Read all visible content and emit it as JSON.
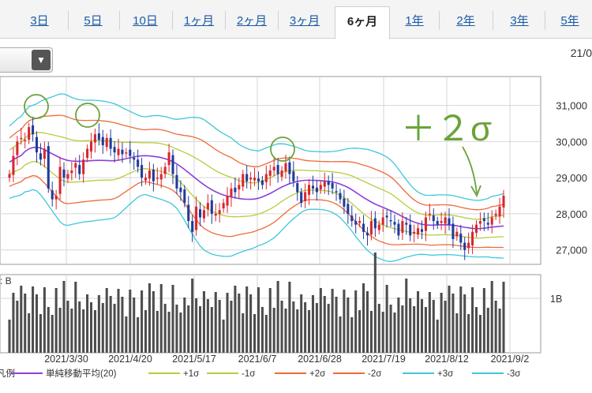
{
  "tabs": [
    "3日",
    "5日",
    "10日",
    "1ヶ月",
    "2ヶ月",
    "3ヶ月",
    "6ヶ月",
    "1年",
    "2年",
    "3年",
    "5年"
  ],
  "active_tab": "6ヶ月",
  "date_label": "21/0",
  "annotation": "＋２σ",
  "volume_label": ": B",
  "colors": {
    "up": "#d9262e",
    "down": "#1f3b9b",
    "sma": "#8e3fd6",
    "s1": "#b9cc3c",
    "s2": "#ee6b3a",
    "s3": "#3fc7d9",
    "vol": "#4d4d4d",
    "note": "#6aa33a"
  },
  "chart_data": {
    "type": "candlestick",
    "title": "",
    "y_ticks": [
      "31,000",
      "30,000",
      "29,000",
      "28,000",
      "27,000"
    ],
    "ylim": [
      26600,
      31800
    ],
    "x_ticks": [
      "2021/3/30",
      "2021/4/20",
      "2021/5/17",
      "2021/6/7",
      "2021/6/28",
      "2021/7/19",
      "2021/8/12",
      "2021/9/2"
    ],
    "volume_tick": "1B",
    "legend": [
      {
        "label": "単純移動平均(20)",
        "color": "#8e3fd6"
      },
      {
        "label": "+1σ",
        "color": "#b9cc3c"
      },
      {
        "label": "-1σ",
        "color": "#b9cc3c"
      },
      {
        "label": "+2σ",
        "color": "#ee6b3a"
      },
      {
        "label": "-2σ",
        "color": "#ee6b3a"
      },
      {
        "label": "+3σ",
        "color": "#3fc7d9"
      },
      {
        "label": "-3σ",
        "color": "#3fc7d9"
      }
    ],
    "legend_prefix": "凡例",
    "close": [
      29100,
      29600,
      30000,
      30100,
      30050,
      30400,
      30200,
      29700,
      29500,
      29800,
      28700,
      28400,
      28500,
      29300,
      29000,
      29100,
      29200,
      29400,
      29100,
      29500,
      29800,
      30000,
      30200,
      30050,
      29900,
      30100,
      29800,
      29700,
      29800,
      29650,
      29700,
      29600,
      29500,
      29300,
      29000,
      29000,
      29200,
      28900,
      29000,
      29100,
      29300,
      29700,
      29100,
      28700,
      28600,
      28300,
      27800,
      27500,
      28200,
      27900,
      28100,
      28300,
      28000,
      28000,
      28100,
      28300,
      28500,
      28700,
      28600,
      28800,
      29100,
      28900,
      29000,
      29000,
      28900,
      28800,
      29100,
      29200,
      29300,
      29100,
      29200,
      29400,
      29100,
      28900,
      28600,
      28300,
      28600,
      28800,
      28700,
      28600,
      28800,
      28900,
      28800,
      28700,
      28600,
      28400,
      28200,
      28000,
      27800,
      27700,
      27800,
      27500,
      27400,
      27800,
      27600,
      27700,
      27900,
      27900,
      27800,
      27700,
      27400,
      27800,
      27700,
      27400,
      27500,
      27600,
      27500,
      27900,
      28000,
      27800,
      27700,
      27800,
      27900,
      27700,
      27300,
      27500,
      27200,
      27000,
      27200,
      27500,
      27700,
      27800,
      27800,
      27700,
      27900,
      28000,
      28200,
      28500
    ]
  }
}
